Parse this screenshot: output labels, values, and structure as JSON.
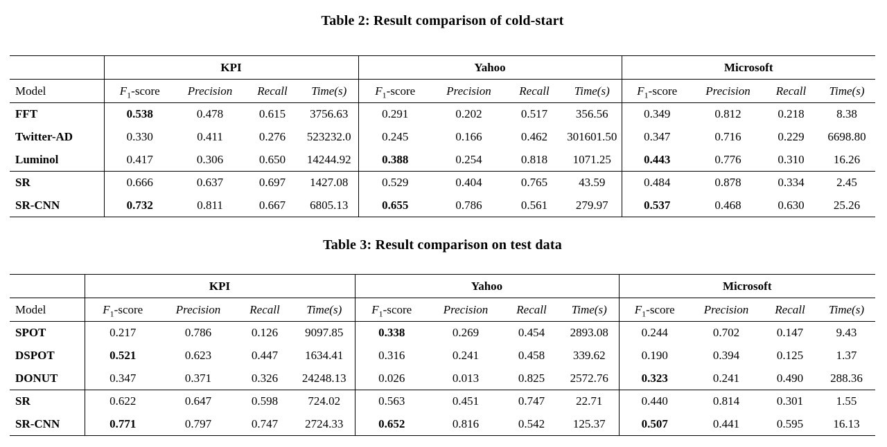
{
  "tables": [
    {
      "title": "Table 2: Result comparison of cold-start",
      "model_header": "Model",
      "groups": [
        "KPI",
        "Yahoo",
        "Microsoft"
      ],
      "metric_headers": [
        "F1-score",
        "Precision",
        "Recall",
        "Time(s)"
      ],
      "rows": [
        {
          "model": "FFT",
          "cells": [
            "0.538",
            "0.478",
            "0.615",
            "3756.63",
            "0.291",
            "0.202",
            "0.517",
            "356.56",
            "0.349",
            "0.812",
            "0.218",
            "8.38"
          ],
          "bold": [
            0
          ]
        },
        {
          "model": "Twitter-AD",
          "cells": [
            "0.330",
            "0.411",
            "0.276",
            "523232.0",
            "0.245",
            "0.166",
            "0.462",
            "301601.50",
            "0.347",
            "0.716",
            "0.229",
            "6698.80"
          ],
          "bold": []
        },
        {
          "model": "Luminol",
          "cells": [
            "0.417",
            "0.306",
            "0.650",
            "14244.92",
            "0.388",
            "0.254",
            "0.818",
            "1071.25",
            "0.443",
            "0.776",
            "0.310",
            "16.26"
          ],
          "bold": [
            4,
            8
          ]
        },
        {
          "model": "SR",
          "cells": [
            "0.666",
            "0.637",
            "0.697",
            "1427.08",
            "0.529",
            "0.404",
            "0.765",
            "43.59",
            "0.484",
            "0.878",
            "0.334",
            "2.45"
          ],
          "bold": []
        },
        {
          "model": "SR-CNN",
          "cells": [
            "0.732",
            "0.811",
            "0.667",
            "6805.13",
            "0.655",
            "0.786",
            "0.561",
            "279.97",
            "0.537",
            "0.468",
            "0.630",
            "25.26"
          ],
          "bold": [
            0,
            4,
            8
          ]
        }
      ],
      "section_break_after_row": 2
    },
    {
      "title": "Table 3: Result comparison on test data",
      "model_header": "Model",
      "groups": [
        "KPI",
        "Yahoo",
        "Microsoft"
      ],
      "metric_headers": [
        "F1-score",
        "Precision",
        "Recall",
        "Time(s)"
      ],
      "rows": [
        {
          "model": "SPOT",
          "cells": [
            "0.217",
            "0.786",
            "0.126",
            "9097.85",
            "0.338",
            "0.269",
            "0.454",
            "2893.08",
            "0.244",
            "0.702",
            "0.147",
            "9.43"
          ],
          "bold": [
            4
          ]
        },
        {
          "model": "DSPOT",
          "cells": [
            "0.521",
            "0.623",
            "0.447",
            "1634.41",
            "0.316",
            "0.241",
            "0.458",
            "339.62",
            "0.190",
            "0.394",
            "0.125",
            "1.37"
          ],
          "bold": [
            0
          ]
        },
        {
          "model": "DONUT",
          "cells": [
            "0.347",
            "0.371",
            "0.326",
            "24248.13",
            "0.026",
            "0.013",
            "0.825",
            "2572.76",
            "0.323",
            "0.241",
            "0.490",
            "288.36"
          ],
          "bold": [
            8
          ]
        },
        {
          "model": "SR",
          "cells": [
            "0.622",
            "0.647",
            "0.598",
            "724.02",
            "0.563",
            "0.451",
            "0.747",
            "22.71",
            "0.440",
            "0.814",
            "0.301",
            "1.55"
          ],
          "bold": []
        },
        {
          "model": "SR-CNN",
          "cells": [
            "0.771",
            "0.797",
            "0.747",
            "2724.33",
            "0.652",
            "0.816",
            "0.542",
            "125.37",
            "0.507",
            "0.441",
            "0.595",
            "16.13"
          ],
          "bold": [
            0,
            4,
            8
          ]
        }
      ],
      "section_break_after_row": 2
    }
  ]
}
